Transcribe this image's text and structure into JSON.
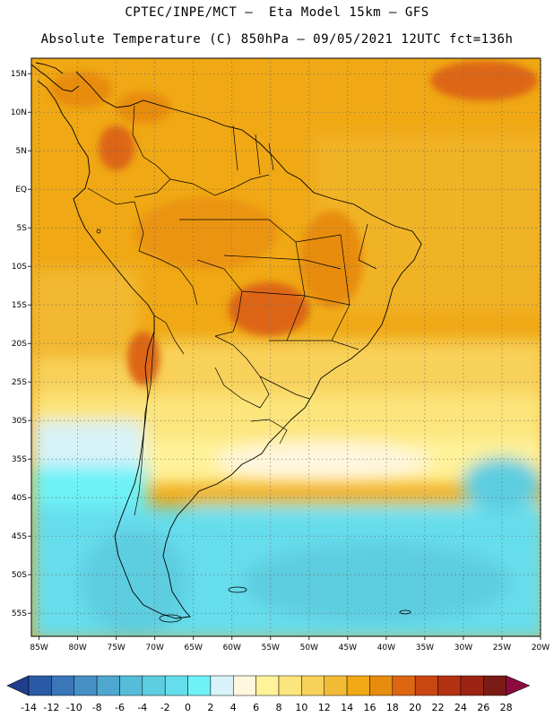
{
  "header": {
    "line1": "CPTEC/INPE/MCT –  Eta Model 15km – GFS",
    "line2": "Absolute Temperature (C) 850hPa – 09/05/2021 12UTC fct=136h"
  },
  "map": {
    "lon_range": [
      -86,
      -20
    ],
    "lat_range": [
      -58,
      17
    ],
    "lon_ticks": [
      "85W",
      "80W",
      "75W",
      "70W",
      "65W",
      "60W",
      "55W",
      "50W",
      "45W",
      "40W",
      "35W",
      "30W",
      "25W",
      "20W"
    ],
    "lat_ticks": [
      "15N",
      "10N",
      "5N",
      "EQ",
      "5S",
      "10S",
      "15S",
      "20S",
      "25S",
      "30S",
      "35S",
      "40S",
      "45S",
      "50S",
      "55S"
    ],
    "gridlines": true
  },
  "colorbar": {
    "labels": [
      "-14",
      "-12",
      "-10",
      "-8",
      "-6",
      "-4",
      "-2",
      "0",
      "2",
      "4",
      "6",
      "8",
      "10",
      "12",
      "14",
      "16",
      "18",
      "20",
      "22",
      "24",
      "26",
      "28"
    ],
    "colors": [
      "#1f3e8c",
      "#2a5aa6",
      "#3a76b8",
      "#4590c4",
      "#4ea7cf",
      "#55bdd8",
      "#5dcde0",
      "#66ddec",
      "#6ef2f8",
      "#d7f3f9",
      "#fff6de",
      "#fff29a",
      "#fce57c",
      "#f8d15a",
      "#f2bb36",
      "#f0a814",
      "#e88c0f",
      "#dd6612",
      "#c94612",
      "#b33212",
      "#9a2313",
      "#7a1c15",
      "#8c0a3e"
    ]
  }
}
